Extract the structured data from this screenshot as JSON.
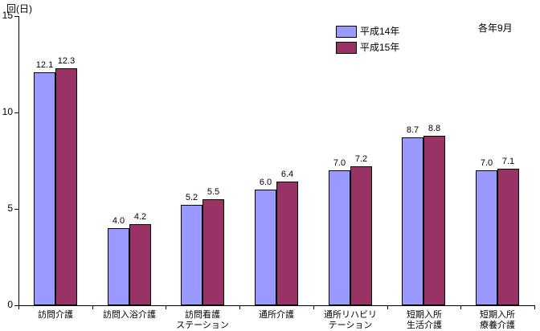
{
  "chart_data": {
    "type": "bar",
    "title": "",
    "unit_label": "回(日)",
    "note": "各年9月",
    "xlabel": "",
    "ylabel": "回(日)",
    "categories": [
      "訪問介護",
      "訪問入浴介護",
      "訪問看護ステーション",
      "通所介護",
      "通所リハビリテーション",
      "短期入所生活介護",
      "短期入所療養介護"
    ],
    "category_lines": [
      [
        "訪問介護"
      ],
      [
        "訪問入浴介護"
      ],
      [
        "訪問看護",
        "ステーション"
      ],
      [
        "通所介護"
      ],
      [
        "通所リハビリ",
        "テーション"
      ],
      [
        "短期入所",
        "生活介護"
      ],
      [
        "短期入所",
        "療養介護"
      ]
    ],
    "series": [
      {
        "name": "平成14年",
        "color": "#9999ff",
        "values": [
          12.1,
          4.0,
          5.2,
          6.0,
          7.0,
          8.7,
          7.0
        ]
      },
      {
        "name": "平成15年",
        "color": "#993366",
        "values": [
          12.3,
          4.2,
          5.5,
          6.4,
          7.2,
          8.8,
          7.1
        ]
      }
    ],
    "ylim": [
      0,
      15
    ],
    "yticks": [
      0,
      5,
      10,
      15
    ],
    "grid": false,
    "legend_position": "top-center",
    "value_labels_shown": true
  }
}
